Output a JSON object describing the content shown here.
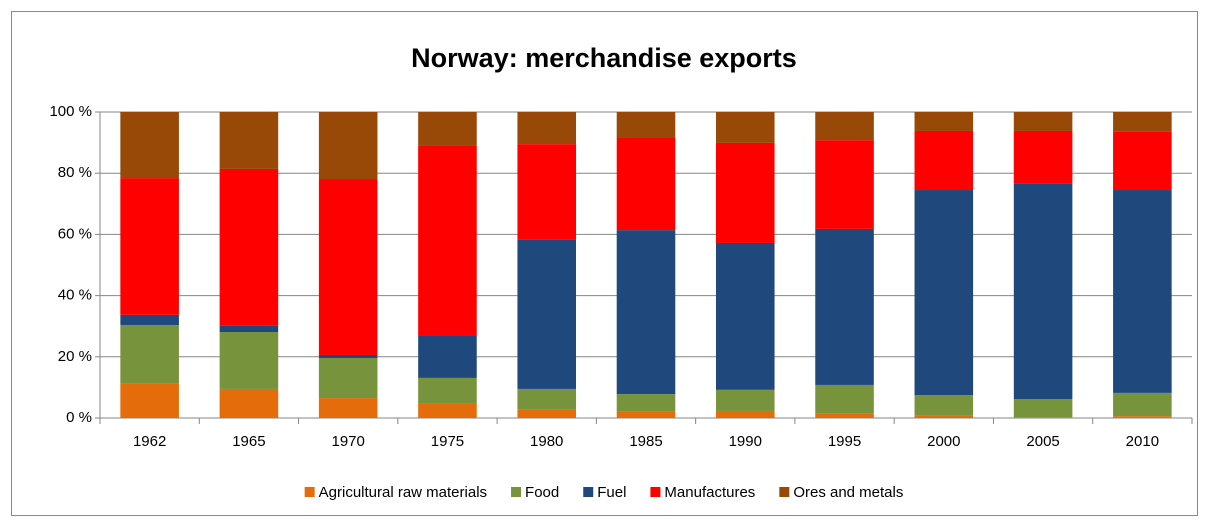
{
  "chart_data": {
    "type": "bar",
    "stacked": true,
    "title": "Norway: merchandise exports",
    "categories": [
      "1962",
      "1965",
      "1970",
      "1975",
      "1980",
      "1985",
      "1990",
      "1995",
      "2000",
      "2005",
      "2010"
    ],
    "series": [
      {
        "name": "Agricultural raw materials",
        "color": "#e46c0a",
        "values": [
          11.4,
          9.5,
          6.5,
          4.6,
          2.9,
          2.0,
          2.3,
          1.6,
          0.7,
          0.3,
          0.6
        ]
      },
      {
        "name": "Food",
        "color": "#77933c",
        "values": [
          19.0,
          18.6,
          13.1,
          8.5,
          6.6,
          5.8,
          6.9,
          9.2,
          6.8,
          5.9,
          7.6
        ]
      },
      {
        "name": "Fuel",
        "color": "#1f497d",
        "values": [
          3.3,
          2.0,
          1.0,
          14.0,
          48.7,
          53.6,
          48.0,
          51.0,
          67.0,
          70.3,
          66.3
        ]
      },
      {
        "name": "Manufactures",
        "color": "#ff0000",
        "values": [
          44.7,
          51.3,
          57.5,
          61.8,
          31.3,
          30.1,
          32.7,
          29.0,
          19.3,
          17.3,
          19.0
        ]
      },
      {
        "name": "Ores and metals",
        "color": "#984807",
        "values": [
          21.6,
          18.6,
          21.9,
          11.1,
          10.5,
          8.5,
          10.1,
          9.2,
          6.2,
          6.2,
          6.5
        ]
      }
    ],
    "ylim": [
      0,
      100
    ],
    "yticks": [
      {
        "value": 0,
        "label": "0 %"
      },
      {
        "value": 20,
        "label": "20 %"
      },
      {
        "value": 40,
        "label": "40 %"
      },
      {
        "value": 60,
        "label": "60 %"
      },
      {
        "value": 80,
        "label": "80 %"
      },
      {
        "value": 100,
        "label": "100 %"
      }
    ],
    "grid": true,
    "legend": "bottom"
  }
}
